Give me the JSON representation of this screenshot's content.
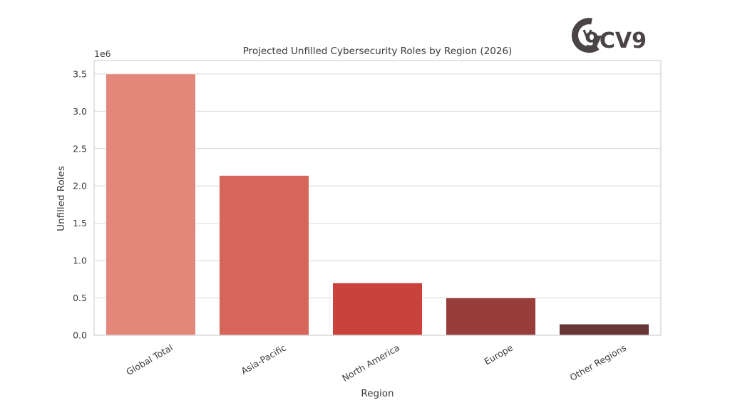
{
  "header": {
    "logo_text": "9CV9"
  },
  "chart_data": {
    "type": "bar",
    "title": "Projected Unfilled Cybersecurity Roles by Region (2026)",
    "xlabel": "Region",
    "ylabel": "Unfilled Roles",
    "y_offset_label": "1e6",
    "categories": [
      "Global Total",
      "Asia-Pacific",
      "North America",
      "Europe",
      "Other Regions"
    ],
    "values": [
      3500000,
      2140000,
      700000,
      500000,
      150000
    ],
    "colors": [
      "#E2877A",
      "#D7665A",
      "#C9433C",
      "#973E3B",
      "#663636"
    ],
    "yticks": [
      "0.0",
      "0.5",
      "1.0",
      "1.5",
      "2.0",
      "2.5",
      "3.0",
      "3.5"
    ],
    "ylim": [
      0,
      3680000
    ],
    "grid": true,
    "legend": null
  }
}
